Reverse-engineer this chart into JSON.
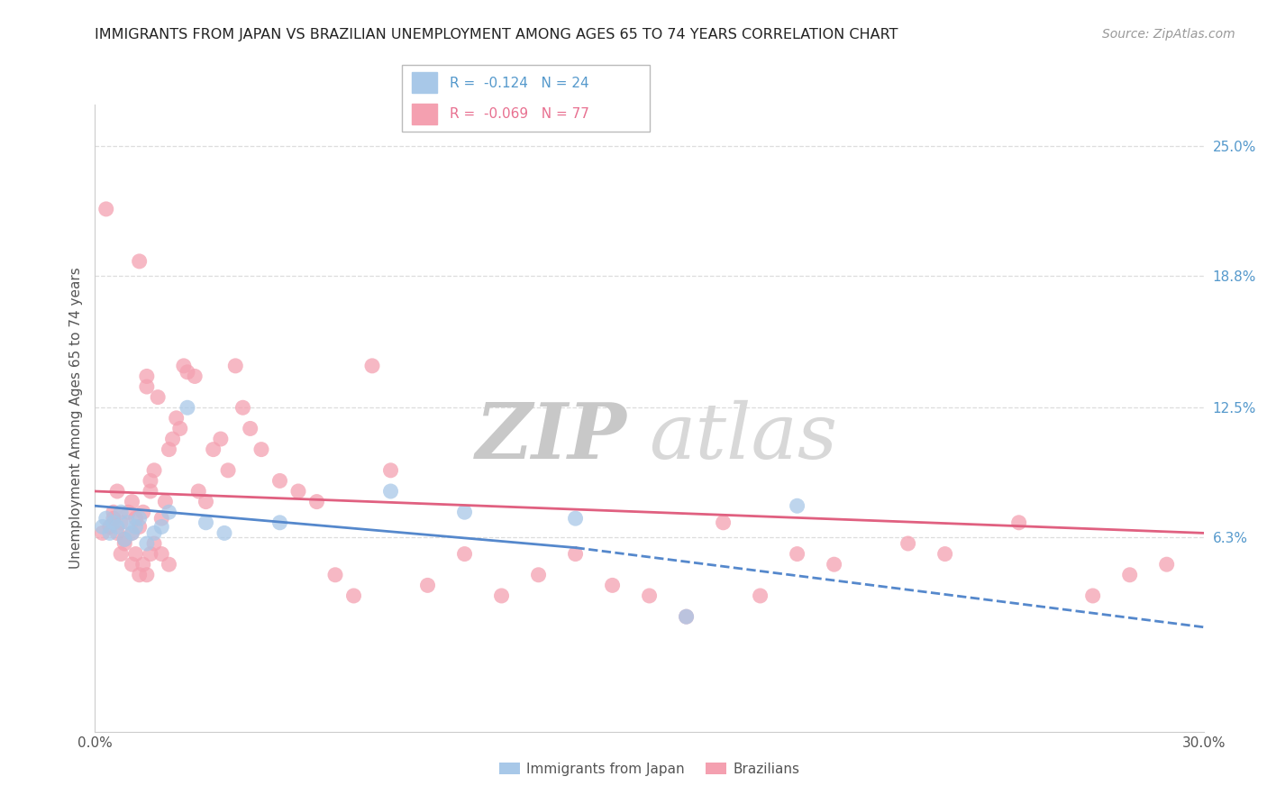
{
  "title": "IMMIGRANTS FROM JAPAN VS BRAZILIAN UNEMPLOYMENT AMONG AGES 65 TO 74 YEARS CORRELATION CHART",
  "source": "Source: ZipAtlas.com",
  "ylabel": "Unemployment Among Ages 65 to 74 years",
  "right_yticklabels": [
    "6.3%",
    "12.5%",
    "18.8%",
    "25.0%"
  ],
  "right_ytick_vals": [
    6.3,
    12.5,
    18.8,
    25.0
  ],
  "xmin": 0.0,
  "xmax": 30.0,
  "ymin": -3.0,
  "ymax": 27.0,
  "japan_color": "#a8c8e8",
  "brazil_color": "#f4a0b0",
  "japan_line_color": "#5588cc",
  "brazil_line_color": "#e06080",
  "watermark_zip": "ZIP",
  "watermark_atlas": "atlas",
  "watermark_color": "#d0d0d0",
  "japan_scatter_x": [
    0.2,
    0.3,
    0.4,
    0.5,
    0.6,
    0.7,
    0.8,
    0.9,
    1.0,
    1.1,
    1.2,
    1.4,
    1.6,
    1.8,
    2.0,
    2.5,
    3.0,
    3.5,
    5.0,
    8.0,
    10.0,
    13.0,
    16.0,
    19.0
  ],
  "japan_scatter_y": [
    6.8,
    7.2,
    6.5,
    7.0,
    6.8,
    7.5,
    6.2,
    7.0,
    6.5,
    6.8,
    7.2,
    6.0,
    6.5,
    6.8,
    7.5,
    12.5,
    7.0,
    6.5,
    7.0,
    8.5,
    7.5,
    7.2,
    2.5,
    7.8
  ],
  "brazil_scatter_x": [
    0.2,
    0.3,
    0.4,
    0.5,
    0.6,
    0.7,
    0.8,
    0.9,
    1.0,
    1.0,
    1.1,
    1.2,
    1.2,
    1.3,
    1.4,
    1.4,
    1.5,
    1.5,
    1.6,
    1.7,
    1.8,
    1.9,
    2.0,
    2.1,
    2.2,
    2.3,
    2.4,
    2.5,
    2.7,
    2.8,
    3.0,
    3.2,
    3.4,
    3.6,
    3.8,
    4.0,
    4.2,
    4.5,
    5.0,
    5.5,
    6.0,
    6.5,
    7.0,
    7.5,
    8.0,
    9.0,
    10.0,
    11.0,
    12.0,
    13.0,
    14.0,
    15.0,
    16.0,
    17.0,
    18.0,
    19.0,
    20.0,
    22.0,
    23.0,
    25.0,
    27.0,
    28.0,
    29.0,
    0.5,
    0.6,
    0.7,
    0.8,
    1.0,
    1.1,
    1.2,
    1.3,
    1.4,
    1.5,
    1.6,
    1.8,
    2.0
  ],
  "brazil_scatter_y": [
    6.5,
    22.0,
    6.8,
    7.2,
    6.5,
    7.0,
    6.2,
    7.5,
    8.0,
    6.5,
    7.2,
    6.8,
    19.5,
    7.5,
    14.0,
    13.5,
    9.0,
    8.5,
    9.5,
    13.0,
    7.2,
    8.0,
    10.5,
    11.0,
    12.0,
    11.5,
    14.5,
    14.2,
    14.0,
    8.5,
    8.0,
    10.5,
    11.0,
    9.5,
    14.5,
    12.5,
    11.5,
    10.5,
    9.0,
    8.5,
    8.0,
    4.5,
    3.5,
    14.5,
    9.5,
    4.0,
    5.5,
    3.5,
    4.5,
    5.5,
    4.0,
    3.5,
    2.5,
    7.0,
    3.5,
    5.5,
    5.0,
    6.0,
    5.5,
    7.0,
    3.5,
    4.5,
    5.0,
    7.5,
    8.5,
    5.5,
    6.0,
    5.0,
    5.5,
    4.5,
    5.0,
    4.5,
    5.5,
    6.0,
    5.5,
    5.0
  ],
  "japan_trend_x0": 0.0,
  "japan_trend_y0": 7.8,
  "japan_trend_x1": 30.0,
  "japan_trend_y1": 3.0,
  "brazil_trend_x0": 0.0,
  "brazil_trend_y0": 8.5,
  "brazil_trend_x1": 30.0,
  "brazil_trend_y1": 6.5,
  "japan_dashed_x0": 13.0,
  "japan_dashed_y0": 5.8,
  "japan_dashed_x1": 30.0,
  "japan_dashed_y1": 2.0
}
